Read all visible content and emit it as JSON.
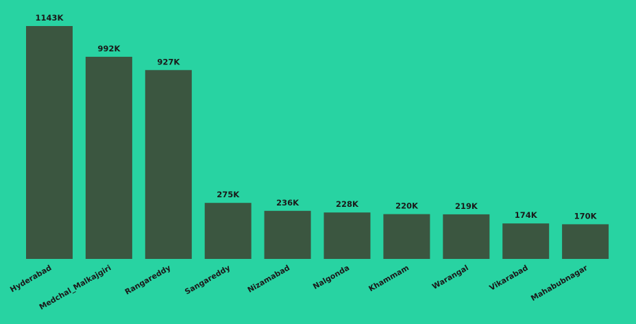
{
  "colors": {
    "background": "#28D3A2",
    "bar": "#3B5640",
    "text": "#1A1A1A"
  },
  "chart_data": {
    "type": "bar",
    "title": "",
    "xlabel": "",
    "ylabel": "",
    "categories": [
      "Hyderabad",
      "Medchal_Malkajgiri",
      "Rangareddy",
      "Sangareddy",
      "Nizamabad",
      "Nalgonda",
      "Khammam",
      "Warangal",
      "Vikarabad",
      "Mahabubnagar"
    ],
    "values": [
      1143,
      992,
      927,
      275,
      236,
      228,
      220,
      219,
      174,
      170
    ],
    "value_labels": [
      "1143K",
      "992K",
      "927K",
      "275K",
      "236K",
      "228K",
      "220K",
      "219K",
      "174K",
      "170K"
    ],
    "unit": "K",
    "ylim": [
      0,
      1143
    ],
    "grid": false,
    "legend": "none",
    "tick_label_rotation": "diagonal"
  }
}
